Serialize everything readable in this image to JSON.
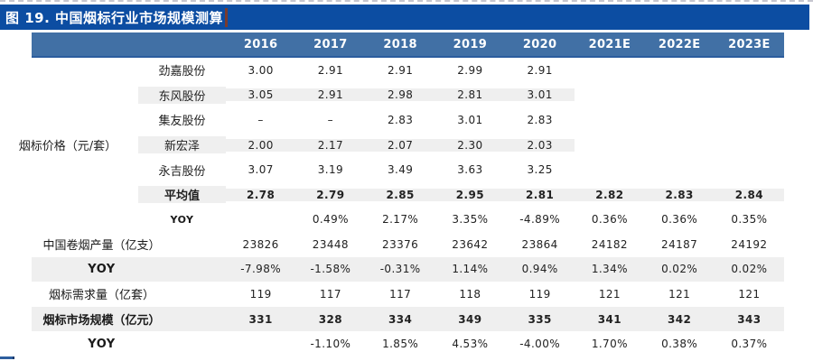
{
  "chart_data": {
    "type": "table",
    "title": "图 19. 中国烟标行业市场规模测算",
    "group_label": "烟标价格（元/套）",
    "columns": [
      "2016",
      "2017",
      "2018",
      "2019",
      "2020",
      "2021E",
      "2022E",
      "2023E"
    ],
    "rows": [
      {
        "label": "劲嘉股份",
        "values": [
          "3.00",
          "2.91",
          "2.91",
          "2.99",
          "2.91",
          "",
          "",
          ""
        ]
      },
      {
        "label": "东风股份",
        "values": [
          "3.05",
          "2.91",
          "2.98",
          "2.81",
          "3.01",
          "",
          "",
          ""
        ]
      },
      {
        "label": "集友股份",
        "values": [
          "–",
          "–",
          "2.83",
          "3.01",
          "2.83",
          "",
          "",
          ""
        ]
      },
      {
        "label": "新宏泽",
        "values": [
          "2.00",
          "2.17",
          "2.07",
          "2.30",
          "2.03",
          "",
          "",
          ""
        ]
      },
      {
        "label": "永吉股份",
        "values": [
          "3.07",
          "3.19",
          "3.49",
          "3.63",
          "3.25",
          "",
          "",
          ""
        ]
      },
      {
        "label": "平均值",
        "values": [
          "2.78",
          "2.79",
          "2.85",
          "2.95",
          "2.81",
          "2.82",
          "2.83",
          "2.84"
        ]
      },
      {
        "label": "YOY",
        "values": [
          "",
          "0.49%",
          "2.17%",
          "3.35%",
          "-4.89%",
          "0.36%",
          "0.36%",
          "0.35%"
        ]
      },
      {
        "label": "中国卷烟产量（亿支）",
        "values": [
          "23826",
          "23448",
          "23376",
          "23642",
          "23864",
          "24182",
          "24187",
          "24192"
        ]
      },
      {
        "label": "YOY",
        "values": [
          "-7.98%",
          "-1.58%",
          "-0.31%",
          "1.14%",
          "0.94%",
          "1.34%",
          "0.02%",
          "0.02%"
        ]
      },
      {
        "label": "烟标需求量（亿套）",
        "values": [
          "119",
          "117",
          "117",
          "118",
          "119",
          "121",
          "121",
          "121"
        ]
      },
      {
        "label": "烟标市场规模（亿元）",
        "values": [
          "331",
          "328",
          "334",
          "349",
          "335",
          "341",
          "342",
          "343"
        ]
      },
      {
        "label": "YOY",
        "values": [
          "",
          "-1.10%",
          "1.85%",
          "4.53%",
          "-4.00%",
          "1.70%",
          "0.38%",
          "0.37%"
        ]
      }
    ],
    "layout": {
      "stripe_rows": [
        1,
        3,
        5,
        8,
        10
      ],
      "bold_rows": [
        5,
        10
      ],
      "grid": "horizontal stripes only"
    }
  },
  "colors": {
    "title_bar": "#0C4DA2",
    "header_bar": "#4170A5",
    "header_border": "#2B5C9E",
    "row_stripe": "#EFEFEF",
    "text_cursor": "#7A3B2E",
    "corner_accent": "#2E5F9F"
  }
}
